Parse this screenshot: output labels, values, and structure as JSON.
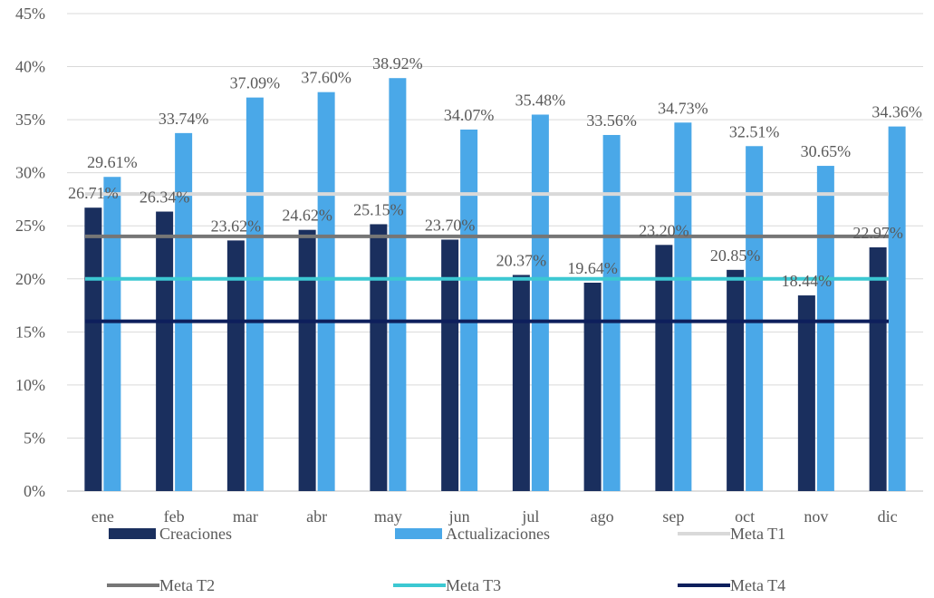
{
  "chart_data": {
    "type": "bar",
    "categories": [
      "ene",
      "feb",
      "mar",
      "abr",
      "may",
      "jun",
      "jul",
      "ago",
      "sep",
      "oct",
      "nov",
      "dic"
    ],
    "ylim": [
      0,
      45
    ],
    "yticks": [
      "0%",
      "5%",
      "10%",
      "15%",
      "20%",
      "25%",
      "30%",
      "35%",
      "40%",
      "45%"
    ],
    "grid": true,
    "legend_position": "bottom",
    "series": [
      {
        "name": "Creaciones",
        "kind": "bar",
        "color": "#1a2f5e",
        "values": [
          26.71,
          26.34,
          23.62,
          24.62,
          25.15,
          23.7,
          20.37,
          19.64,
          23.2,
          20.85,
          18.44,
          22.97
        ],
        "labels": [
          "26.71%",
          "26.34%",
          "23.62%",
          "24.62%",
          "25.15%",
          "23.70%",
          "20.37%",
          "19.64%",
          "23.20%",
          "20.85%",
          "18.44%",
          "22.97%"
        ]
      },
      {
        "name": "Actualizaciones",
        "kind": "bar",
        "color": "#4aa8e8",
        "values": [
          29.61,
          33.74,
          37.09,
          37.6,
          38.92,
          34.07,
          35.48,
          33.56,
          34.73,
          32.51,
          30.65,
          34.36
        ],
        "labels": [
          "29.61%",
          "33.74%",
          "37.09%",
          "37.60%",
          "38.92%",
          "34.07%",
          "35.48%",
          "33.56%",
          "34.73%",
          "32.51%",
          "30.65%",
          "34.36%"
        ]
      },
      {
        "name": "Meta T1",
        "kind": "line",
        "color": "#d9d9d9",
        "value": 28
      },
      {
        "name": "Meta T2",
        "kind": "line",
        "color": "#767676",
        "value": 24
      },
      {
        "name": "Meta T3",
        "kind": "line",
        "color": "#3cc8d2",
        "value": 20
      },
      {
        "name": "Meta T4",
        "kind": "line",
        "color": "#0d1f5c",
        "value": 16
      }
    ]
  }
}
